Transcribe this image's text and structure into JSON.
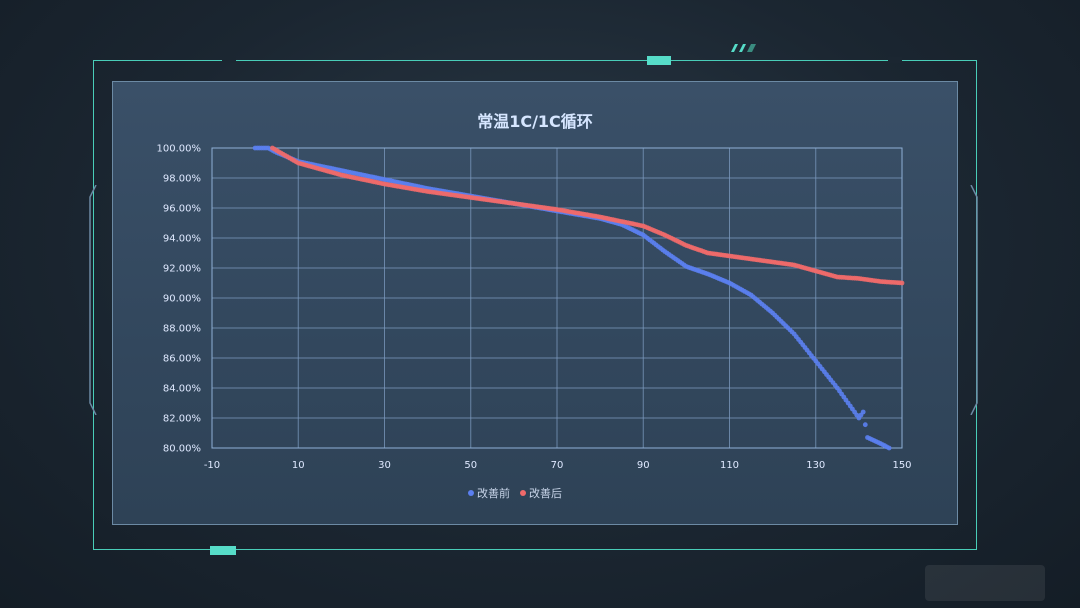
{
  "chart_data": {
    "type": "scatter",
    "title": "常温1C/1C循环",
    "xlabel": "",
    "ylabel": "",
    "xlim": [
      -10,
      150
    ],
    "ylim": [
      80,
      100
    ],
    "x_ticks": [
      -10,
      10,
      30,
      50,
      70,
      90,
      110,
      130,
      150
    ],
    "y_ticks": [
      80,
      82,
      84,
      86,
      88,
      90,
      92,
      94,
      96,
      98,
      100
    ],
    "y_tick_labels": [
      "80.00%",
      "82.00%",
      "84.00%",
      "86.00%",
      "88.00%",
      "90.00%",
      "92.00%",
      "94.00%",
      "96.00%",
      "98.00%",
      "100.00%"
    ],
    "grid": true,
    "legend_position": "bottom",
    "series": [
      {
        "name": "改善前",
        "color": "#5b7ff0",
        "points": [
          [
            0,
            100
          ],
          [
            3,
            100
          ],
          [
            5,
            99.7
          ],
          [
            10,
            99.1
          ],
          [
            15,
            98.8
          ],
          [
            20,
            98.5
          ],
          [
            25,
            98.2
          ],
          [
            30,
            97.9
          ],
          [
            40,
            97.3
          ],
          [
            50,
            96.8
          ],
          [
            60,
            96.3
          ],
          [
            70,
            95.8
          ],
          [
            80,
            95.3
          ],
          [
            85,
            94.9
          ],
          [
            90,
            94.2
          ],
          [
            95,
            93.1
          ],
          [
            100,
            92.1
          ],
          [
            105,
            91.6
          ],
          [
            110,
            91.0
          ],
          [
            115,
            90.2
          ],
          [
            120,
            89.0
          ],
          [
            125,
            87.6
          ],
          [
            130,
            85.8
          ],
          [
            135,
            84.0
          ],
          [
            140,
            82.0
          ],
          [
            141,
            82.4
          ],
          [
            142,
            80.7
          ],
          [
            145,
            80.3
          ],
          [
            147,
            80.0
          ]
        ]
      },
      {
        "name": "改善后",
        "color": "#f06a6a",
        "points": [
          [
            4,
            100
          ],
          [
            10,
            99.0
          ],
          [
            20,
            98.2
          ],
          [
            30,
            97.6
          ],
          [
            40,
            97.1
          ],
          [
            50,
            96.7
          ],
          [
            60,
            96.3
          ],
          [
            70,
            95.9
          ],
          [
            80,
            95.4
          ],
          [
            90,
            94.8
          ],
          [
            95,
            94.2
          ],
          [
            100,
            93.5
          ],
          [
            105,
            93.0
          ],
          [
            110,
            92.8
          ],
          [
            115,
            92.6
          ],
          [
            120,
            92.4
          ],
          [
            125,
            92.2
          ],
          [
            130,
            91.8
          ],
          [
            135,
            91.4
          ],
          [
            140,
            91.3
          ],
          [
            145,
            91.1
          ],
          [
            150,
            91.0
          ]
        ]
      }
    ]
  }
}
